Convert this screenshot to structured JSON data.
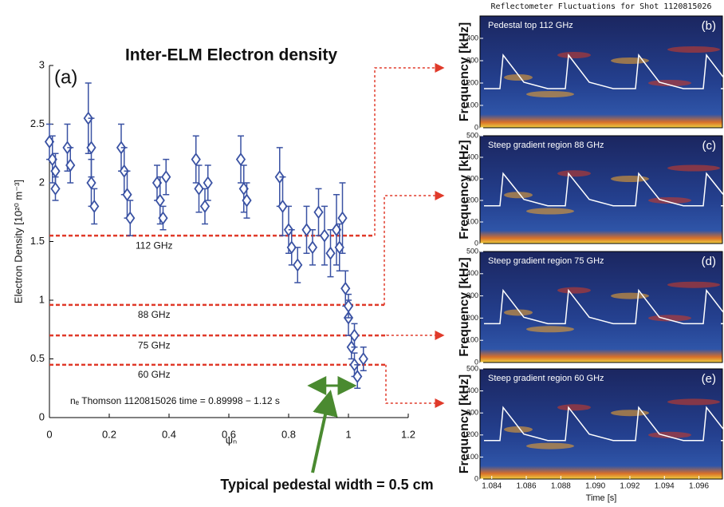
{
  "chart_data": [
    {
      "type": "errorbar",
      "title": "Inter-ELM Electron density",
      "panel_label": "(a)",
      "xlabel": "ψₙ",
      "ylabel": "Electron Density [10²⁰ m⁻³]",
      "annotation": "nₑ Thomson 1120815026 time = 0.89998 − 1.12 s",
      "callout": "Typical pedestal width = 0.5 cm",
      "xlim": [
        0,
        1.2
      ],
      "xticks": [
        0,
        0.2,
        0.4,
        0.6,
        0.8,
        1,
        1.2
      ],
      "ylim": [
        0,
        3
      ],
      "yticks": [
        0,
        0.5,
        1,
        1.5,
        2,
        2.5,
        3
      ],
      "reference_lines": [
        {
          "value": 1.55,
          "label": "112 GHz"
        },
        {
          "value": 0.96,
          "label": "88 GHz"
        },
        {
          "value": 0.7,
          "label": "75 GHz"
        },
        {
          "value": 0.45,
          "label": "60 GHz"
        }
      ],
      "series": [
        {
          "color": "#3a52a3",
          "x": [
            0,
            0.01,
            0.02,
            0.02,
            0.06,
            0.07,
            0.13,
            0.14,
            0.14,
            0.15,
            0.24,
            0.25,
            0.26,
            0.27,
            0.36,
            0.37,
            0.38,
            0.39,
            0.49,
            0.5,
            0.52,
            0.53,
            0.64,
            0.65,
            0.66,
            0.77,
            0.78,
            0.8,
            0.81,
            0.83,
            0.86,
            0.88,
            0.9,
            0.92,
            0.94,
            0.96,
            0.98,
            0.97,
            0.99,
            1,
            1.01,
            1.02,
            1.03,
            1.05,
            1,
            1.02
          ],
          "values": [
            2.35,
            2.2,
            2.1,
            1.95,
            2.3,
            2.15,
            2.55,
            2.3,
            2,
            1.8,
            2.3,
            2.1,
            1.9,
            1.7,
            2,
            1.85,
            1.7,
            2.05,
            2.2,
            1.95,
            1.8,
            2,
            2.2,
            1.95,
            1.85,
            2.05,
            1.8,
            1.6,
            1.45,
            1.3,
            1.6,
            1.45,
            1.75,
            1.55,
            1.4,
            1.6,
            1.7,
            1.45,
            1.1,
            0.85,
            0.6,
            0.45,
            0.35,
            0.5,
            0.95,
            0.7
          ],
          "errors": [
            0.15,
            0.2,
            0.15,
            0.1,
            0.2,
            0.15,
            0.3,
            0.25,
            0.2,
            0.15,
            0.2,
            0.2,
            0.2,
            0.15,
            0.15,
            0.2,
            0.1,
            0.15,
            0.2,
            0.2,
            0.15,
            0.15,
            0.2,
            0.2,
            0.15,
            0.25,
            0.25,
            0.2,
            0.15,
            0.15,
            0.2,
            0.15,
            0.2,
            0.25,
            0.2,
            0.3,
            0.3,
            0.2,
            0.15,
            0.15,
            0.1,
            0.1,
            0.1,
            0.1,
            0.1,
            0.1
          ]
        }
      ]
    },
    {
      "type": "spectrogram",
      "title": "Reflectometer Fluctuations for Shot 1120815026",
      "annotation": "Pedestal top 112 GHz",
      "panel_label": "(b)",
      "ylabel": "Frequency [kHz]",
      "ylim": [
        0,
        500
      ],
      "yticks": [
        0,
        100,
        200,
        300,
        400
      ]
    },
    {
      "type": "spectrogram",
      "annotation": "Steep gradient region 88 GHz",
      "panel_label": "(c)",
      "ylabel": "Frequency [kHz]",
      "ylim": [
        0,
        500
      ],
      "yticks": [
        0,
        100,
        200,
        300,
        400,
        500
      ]
    },
    {
      "type": "spectrogram",
      "annotation": "Steep gradient region 75 GHz",
      "panel_label": "(d)",
      "ylabel": "Frequency [kHz]",
      "ylim": [
        0,
        500
      ],
      "yticks": [
        0,
        100,
        200,
        300,
        400,
        500
      ]
    },
    {
      "type": "spectrogram",
      "annotation": "Steep gradient region 60 GHz",
      "panel_label": "(e)",
      "ylabel": "Frequency [kHz]",
      "ylim": [
        0,
        500
      ],
      "yticks": [
        0,
        100,
        200,
        300,
        400,
        500
      ],
      "xlabel": "Time [s]",
      "xlim": [
        1.08332,
        1.09736
      ],
      "xticks": [
        1.084,
        1.086,
        1.088,
        {
          "value": 1.09,
          "label": "1.090"
        },
        1.092,
        1.094,
        1.096
      ]
    }
  ]
}
